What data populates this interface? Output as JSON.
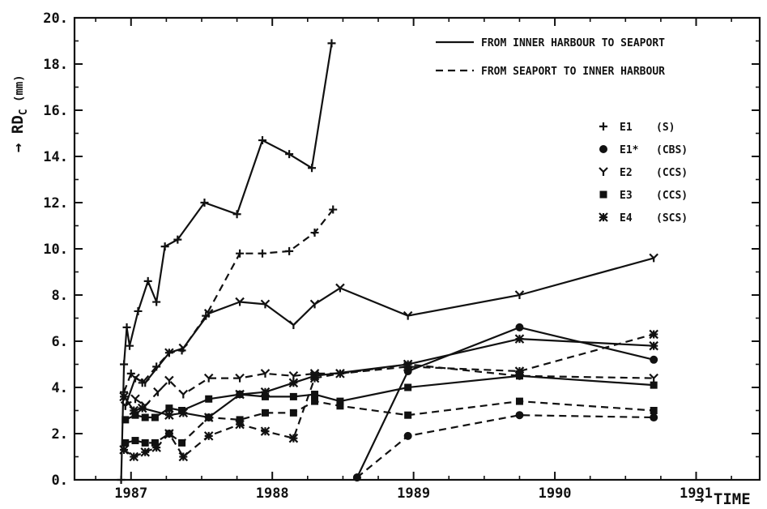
{
  "chart_data": {
    "type": "line",
    "title": "",
    "xlabel": "→ TIME",
    "ylabel_main": "→ RD",
    "ylabel_sub": "C",
    "ylabel_unit": " (mm)",
    "xlim": [
      1986.6,
      1991.45
    ],
    "ylim": [
      0,
      20
    ],
    "x_ticks": [
      1987,
      1988,
      1989,
      1990,
      1991
    ],
    "y_ticks": [
      "0.",
      "2.",
      "4.",
      "6.",
      "8.",
      "10.",
      "12.",
      "14.",
      "16.",
      "18.",
      "20."
    ],
    "grid": false,
    "legend_lines": [
      {
        "style": "solid",
        "label": "FROM INNER HARBOUR TO SEAPORT"
      },
      {
        "style": "dashed",
        "label": "FROM SEAPORT TO INNER HARBOUR"
      }
    ],
    "legend_markers": [
      {
        "marker": "plus",
        "glyph": "+",
        "code": "E1",
        "tag": "(S)"
      },
      {
        "marker": "circle",
        "glyph": "o",
        "code": "E1*",
        "tag": "(CBS)"
      },
      {
        "marker": "y",
        "glyph": "Y",
        "code": "E2",
        "tag": "(CCS)"
      },
      {
        "marker": "square",
        "glyph": "▣",
        "code": "E3",
        "tag": "(CCS)"
      },
      {
        "marker": "star",
        "glyph": "✱",
        "code": "E4",
        "tag": "(SCS)"
      }
    ],
    "series": [
      {
        "specimen": "E1",
        "direction": "solid",
        "marker": "plus",
        "points": [
          [
            1986.93,
            0
          ],
          [
            1986.95,
            5.0
          ],
          [
            1986.97,
            6.6
          ],
          [
            1986.99,
            5.8
          ],
          [
            1987.05,
            7.3
          ],
          [
            1987.12,
            8.6
          ],
          [
            1987.18,
            7.7
          ],
          [
            1987.24,
            10.1
          ],
          [
            1987.33,
            10.4
          ],
          [
            1987.52,
            12.0
          ],
          [
            1987.75,
            11.5
          ],
          [
            1987.93,
            14.7
          ],
          [
            1988.12,
            14.1
          ],
          [
            1988.28,
            13.5
          ],
          [
            1988.42,
            18.9
          ]
        ]
      },
      {
        "specimen": "E1",
        "direction": "dashed",
        "marker": "plus",
        "points": [
          [
            1986.95,
            3.8
          ],
          [
            1987.0,
            4.6
          ],
          [
            1987.08,
            4.2
          ],
          [
            1987.18,
            4.9
          ],
          [
            1987.27,
            5.5
          ],
          [
            1987.36,
            5.6
          ],
          [
            1987.53,
            7.1
          ],
          [
            1987.77,
            9.8
          ],
          [
            1987.93,
            9.8
          ],
          [
            1988.12,
            9.9
          ],
          [
            1988.3,
            10.7
          ],
          [
            1988.43,
            11.7
          ]
        ]
      },
      {
        "specimen": "E1*",
        "direction": "solid",
        "marker": "circle",
        "points": [
          [
            1988.6,
            0.1
          ],
          [
            1988.96,
            4.7
          ],
          [
            1989.75,
            6.6
          ],
          [
            1990.7,
            5.2
          ]
        ]
      },
      {
        "specimen": "E1*",
        "direction": "dashed",
        "marker": "circle",
        "points": [
          [
            1988.6,
            0.1
          ],
          [
            1988.96,
            1.9
          ],
          [
            1989.75,
            2.8
          ],
          [
            1990.7,
            2.7
          ]
        ]
      },
      {
        "specimen": "E2",
        "direction": "solid",
        "marker": "y",
        "points": [
          [
            1986.96,
            3.2
          ],
          [
            1987.03,
            4.4
          ],
          [
            1987.1,
            4.2
          ],
          [
            1987.27,
            5.5
          ],
          [
            1987.37,
            5.7
          ],
          [
            1987.55,
            7.2
          ],
          [
            1987.77,
            7.7
          ],
          [
            1987.95,
            7.6
          ],
          [
            1988.15,
            6.7
          ],
          [
            1988.3,
            7.6
          ],
          [
            1988.48,
            8.3
          ],
          [
            1988.96,
            7.1
          ],
          [
            1989.75,
            8.0
          ],
          [
            1990.7,
            9.6
          ]
        ]
      },
      {
        "specimen": "E2",
        "direction": "dashed",
        "marker": "y",
        "points": [
          [
            1986.96,
            3.2
          ],
          [
            1987.03,
            3.5
          ],
          [
            1987.1,
            3.2
          ],
          [
            1987.19,
            3.8
          ],
          [
            1987.27,
            4.3
          ],
          [
            1987.37,
            3.7
          ],
          [
            1987.55,
            4.4
          ],
          [
            1987.77,
            4.4
          ],
          [
            1987.95,
            4.6
          ],
          [
            1988.15,
            4.5
          ],
          [
            1988.3,
            4.6
          ],
          [
            1988.48,
            4.6
          ],
          [
            1988.96,
            5.0
          ],
          [
            1989.75,
            4.5
          ],
          [
            1990.7,
            4.4
          ]
        ]
      },
      {
        "specimen": "E3",
        "direction": "solid",
        "marker": "square",
        "points": [
          [
            1986.96,
            2.6
          ],
          [
            1987.03,
            2.8
          ],
          [
            1987.1,
            2.7
          ],
          [
            1987.17,
            2.7
          ],
          [
            1987.27,
            3.1
          ],
          [
            1987.36,
            3.0
          ],
          [
            1987.55,
            3.5
          ],
          [
            1987.77,
            3.7
          ],
          [
            1987.95,
            3.6
          ],
          [
            1988.15,
            3.6
          ],
          [
            1988.3,
            3.7
          ],
          [
            1988.48,
            3.4
          ],
          [
            1988.96,
            4.0
          ],
          [
            1989.75,
            4.5
          ],
          [
            1990.7,
            4.1
          ]
        ]
      },
      {
        "specimen": "E3",
        "direction": "dashed",
        "marker": "square",
        "points": [
          [
            1986.96,
            1.6
          ],
          [
            1987.03,
            1.7
          ],
          [
            1987.1,
            1.6
          ],
          [
            1987.17,
            1.6
          ],
          [
            1987.27,
            2.0
          ],
          [
            1987.36,
            1.6
          ],
          [
            1987.55,
            2.7
          ],
          [
            1987.77,
            2.6
          ],
          [
            1987.95,
            2.9
          ],
          [
            1988.15,
            2.9
          ],
          [
            1988.3,
            3.4
          ],
          [
            1988.48,
            3.2
          ],
          [
            1988.96,
            2.8
          ],
          [
            1989.75,
            3.4
          ],
          [
            1990.7,
            3.0
          ]
        ]
      },
      {
        "specimen": "E4",
        "direction": "solid",
        "marker": "star",
        "points": [
          [
            1986.95,
            3.6
          ],
          [
            1987.02,
            3.0
          ],
          [
            1987.08,
            3.1
          ],
          [
            1987.27,
            2.8
          ],
          [
            1987.37,
            2.9
          ],
          [
            1987.55,
            2.7
          ],
          [
            1987.77,
            3.7
          ],
          [
            1987.95,
            3.8
          ],
          [
            1988.15,
            4.2
          ],
          [
            1988.3,
            4.5
          ],
          [
            1988.96,
            5.0
          ],
          [
            1989.75,
            6.1
          ],
          [
            1990.7,
            5.8
          ]
        ]
      },
      {
        "specimen": "E4",
        "direction": "dashed",
        "marker": "star",
        "points": [
          [
            1986.95,
            1.3
          ],
          [
            1987.02,
            1.0
          ],
          [
            1987.1,
            1.2
          ],
          [
            1987.18,
            1.4
          ],
          [
            1987.27,
            2.0
          ],
          [
            1987.37,
            1.0
          ],
          [
            1987.55,
            1.9
          ],
          [
            1987.77,
            2.4
          ],
          [
            1987.95,
            2.1
          ],
          [
            1988.15,
            1.8
          ],
          [
            1988.3,
            4.4
          ],
          [
            1988.48,
            4.6
          ],
          [
            1988.96,
            4.9
          ],
          [
            1989.75,
            4.7
          ],
          [
            1990.7,
            6.3
          ]
        ]
      }
    ]
  }
}
